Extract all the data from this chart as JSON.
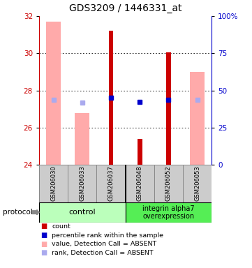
{
  "title": "GDS3209 / 1446331_at",
  "samples": [
    "GSM206030",
    "GSM206033",
    "GSM206037",
    "GSM206048",
    "GSM206052",
    "GSM206053"
  ],
  "ylim": [
    24,
    32
  ],
  "y2lim": [
    0,
    100
  ],
  "yticks": [
    24,
    26,
    28,
    30,
    32
  ],
  "y2ticks": [
    0,
    25,
    50,
    75,
    100
  ],
  "y2ticklabels": [
    "0",
    "25",
    "50",
    "75",
    "100%"
  ],
  "bar_bottom": 24,
  "red_bars": {
    "GSM206030": null,
    "GSM206033": null,
    "GSM206037": 31.2,
    "GSM206048": 25.4,
    "GSM206052": 30.05,
    "GSM206053": null
  },
  "pink_bars": {
    "GSM206030": 31.7,
    "GSM206033": 26.8,
    "GSM206037": null,
    "GSM206048": null,
    "GSM206052": null,
    "GSM206053": 29.0
  },
  "blue_squares": {
    "GSM206030": null,
    "GSM206033": null,
    "GSM206037": 27.6,
    "GSM206048": 27.4,
    "GSM206052": 27.5,
    "GSM206053": null
  },
  "light_blue_squares": {
    "GSM206030": 27.5,
    "GSM206033": 27.35,
    "GSM206037": null,
    "GSM206048": null,
    "GSM206052": null,
    "GSM206053": 27.5
  },
  "colors": {
    "red_bar": "#cc0000",
    "pink_bar": "#ffaaaa",
    "blue_square": "#0000cc",
    "light_blue_square": "#aaaaee",
    "left_axis": "#cc0000",
    "right_axis": "#0000cc",
    "sample_box": "#cccccc",
    "group_control": "#bbffbb",
    "group_integrin": "#55ee55"
  },
  "legend_items": [
    {
      "color": "#cc0000",
      "label": "count"
    },
    {
      "color": "#0000cc",
      "label": "percentile rank within the sample"
    },
    {
      "color": "#ffaaaa",
      "label": "value, Detection Call = ABSENT"
    },
    {
      "color": "#aaaaee",
      "label": "rank, Detection Call = ABSENT"
    }
  ]
}
